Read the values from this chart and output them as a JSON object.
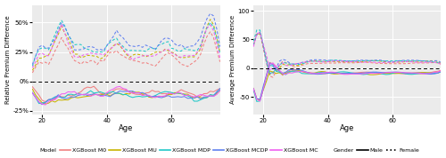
{
  "plot1_ylabel": "Relative Premium Difference",
  "plot2_ylabel": "Average Premium Difference",
  "xlabel": "Age",
  "ylim1": [
    -0.28,
    0.65
  ],
  "ylim2": [
    -80,
    110
  ],
  "yticks1": [
    -0.25,
    0.0,
    0.25,
    0.5
  ],
  "yticks1_labels": [
    "-25%",
    "0%",
    "25%",
    "50%"
  ],
  "yticks2": [
    -50,
    0,
    50,
    100
  ],
  "colors": {
    "M0": "#F08080",
    "MU": "#C8B400",
    "MDP": "#20C8C8",
    "MCDP": "#6080F0",
    "MC": "#F060F0"
  },
  "bg_color": "#EBEBEB",
  "grid_color": "#FFFFFF"
}
